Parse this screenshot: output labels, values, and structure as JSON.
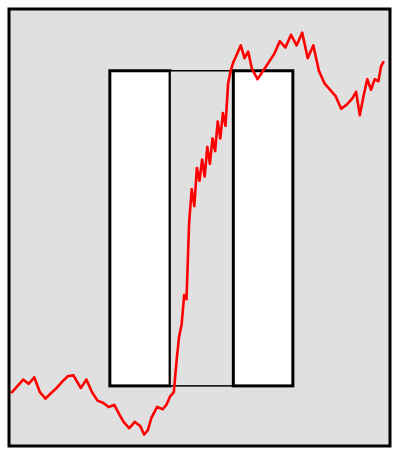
{
  "colors": {
    "panel_background": "#e0e0e0",
    "frame": "#000000",
    "series_line": "#ff0000",
    "box_fill": "#ffffff",
    "page_background": "#ffffff"
  },
  "chart_data": {
    "type": "line",
    "title": "",
    "xlabel": "",
    "ylabel": "",
    "grid": false,
    "axes_visible": false,
    "xlim": [
      0,
      100
    ],
    "ylim": [
      0,
      100
    ],
    "series": [
      {
        "color": "#ff0000",
        "points": [
          [
            0,
            12
          ],
          [
            1.5,
            13.5
          ],
          [
            3,
            15
          ],
          [
            4.5,
            14
          ],
          [
            6,
            15.5
          ],
          [
            7.5,
            12
          ],
          [
            9,
            10.5
          ],
          [
            10.5,
            11.8
          ],
          [
            12,
            13
          ],
          [
            13.5,
            14.5
          ],
          [
            15,
            15.8
          ],
          [
            16.5,
            16
          ],
          [
            17.5,
            14.5
          ],
          [
            18.5,
            13
          ],
          [
            20,
            15
          ],
          [
            21.5,
            12
          ],
          [
            23,
            10
          ],
          [
            24.5,
            9.5
          ],
          [
            26,
            8.5
          ],
          [
            27.5,
            9
          ],
          [
            29,
            6.5
          ],
          [
            30,
            5
          ],
          [
            31.5,
            3.5
          ],
          [
            33,
            5
          ],
          [
            34.5,
            4
          ],
          [
            35.5,
            2
          ],
          [
            36.5,
            3
          ],
          [
            37.5,
            6
          ],
          [
            39,
            8.5
          ],
          [
            40.5,
            8
          ],
          [
            41.5,
            9
          ],
          [
            42.5,
            11
          ],
          [
            43.5,
            12
          ],
          [
            44.3,
            20
          ],
          [
            44.9,
            25
          ],
          [
            45.6,
            28
          ],
          [
            46.3,
            35
          ],
          [
            46.9,
            34
          ],
          [
            47.6,
            52
          ],
          [
            48.3,
            60
          ],
          [
            49,
            56
          ],
          [
            49.7,
            65
          ],
          [
            50.4,
            62
          ],
          [
            51.1,
            67
          ],
          [
            51.8,
            63
          ],
          [
            52.5,
            70
          ],
          [
            53.2,
            66
          ],
          [
            53.9,
            72
          ],
          [
            54.6,
            69
          ],
          [
            55.3,
            76
          ],
          [
            56,
            72
          ],
          [
            56.7,
            78
          ],
          [
            57.4,
            75
          ],
          [
            58.1,
            85
          ],
          [
            58.8,
            88
          ],
          [
            59.5,
            90
          ],
          [
            60.5,
            92
          ],
          [
            61.5,
            94
          ],
          [
            62.5,
            91
          ],
          [
            63.5,
            92.5
          ],
          [
            64.5,
            88.5
          ],
          [
            66,
            86
          ],
          [
            67.5,
            88
          ],
          [
            69,
            90
          ],
          [
            70.5,
            92
          ],
          [
            72,
            95
          ],
          [
            73.5,
            93.5
          ],
          [
            75,
            96.5
          ],
          [
            76.5,
            94
          ],
          [
            78,
            97
          ],
          [
            79.5,
            91
          ],
          [
            81,
            94
          ],
          [
            82.5,
            88
          ],
          [
            84,
            85
          ],
          [
            85.5,
            83.5
          ],
          [
            87,
            82
          ],
          [
            88.5,
            79
          ],
          [
            90,
            80
          ],
          [
            91.5,
            81.5
          ],
          [
            92.5,
            83
          ],
          [
            93.5,
            77.5
          ],
          [
            94.5,
            82
          ],
          [
            95.5,
            86
          ],
          [
            96.5,
            83.5
          ],
          [
            97.5,
            86
          ],
          [
            98.5,
            85.5
          ],
          [
            99.2,
            89
          ],
          [
            99.8,
            90
          ]
        ]
      }
    ],
    "annotations": [
      {
        "kind": "rectangle",
        "role": "left-box",
        "x": [
          26.3,
          42.5
        ],
        "y": [
          13.5,
          88
        ]
      },
      {
        "kind": "rectangle",
        "role": "middle-box",
        "x": [
          42.5,
          59.5
        ],
        "y": [
          13.5,
          88
        ]
      },
      {
        "kind": "rectangle",
        "role": "right-box",
        "x": [
          59.5,
          75.5
        ],
        "y": [
          13.5,
          88
        ]
      }
    ]
  }
}
